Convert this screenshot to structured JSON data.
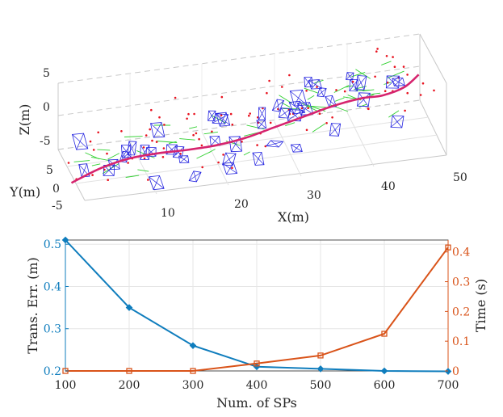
{
  "chart_data": [
    {
      "type": "3d-trajectory",
      "xlabel": "X(m)",
      "ylabel": "Y(m)",
      "zlabel": "Z(m)",
      "xlim": [
        0,
        50
      ],
      "ylim": [
        -5,
        5
      ],
      "zlim": [
        -5,
        5
      ],
      "x_ticks": [
        "10",
        "20",
        "30",
        "40",
        "50"
      ],
      "y_ticks": [
        "5",
        "0",
        "-5"
      ],
      "z_ticks": [
        "5",
        "0",
        "-5"
      ],
      "trajectory": {
        "color": "#d6246e",
        "points": [
          {
            "x": 0,
            "y": 0,
            "z": -6.2
          },
          {
            "x": 4,
            "y": 0,
            "z": -4.6
          },
          {
            "x": 8,
            "y": 0,
            "z": -3.7
          },
          {
            "x": 12,
            "y": 0,
            "z": -3.5
          },
          {
            "x": 16,
            "y": 0,
            "z": -3.6
          },
          {
            "x": 20,
            "y": 0,
            "z": -3.5
          },
          {
            "x": 24,
            "y": 0,
            "z": -3.0
          },
          {
            "x": 28,
            "y": 0,
            "z": -2.0
          },
          {
            "x": 32,
            "y": 0,
            "z": -1.0
          },
          {
            "x": 36,
            "y": 0,
            "z": 0.0
          },
          {
            "x": 40,
            "y": 0,
            "z": 0.6
          },
          {
            "x": 43,
            "y": 0,
            "z": 0.6
          },
          {
            "x": 46,
            "y": 0,
            "z": 1.4
          },
          {
            "x": 48,
            "y": 0,
            "z": 3.0
          }
        ]
      },
      "features": [
        "red map points",
        "green line features",
        "blue camera frustums"
      ]
    },
    {
      "type": "line",
      "categories": [
        100,
        200,
        300,
        400,
        500,
        600,
        700
      ],
      "xlabel": "Num. of SPs",
      "xlim": [
        100,
        700
      ],
      "x_ticks": [
        "100",
        "200",
        "300",
        "400",
        "500",
        "600",
        "700"
      ],
      "series": [
        {
          "name": "Trans. Err. (m)",
          "axis": "left",
          "marker": "diamond",
          "color": "#0f7dbd",
          "values": [
            0.51,
            0.35,
            0.26,
            0.21,
            0.205,
            0.2,
            0.199
          ]
        },
        {
          "name": "Time (s)",
          "axis": "right",
          "marker": "square",
          "color": "#d95319",
          "values": [
            0.0,
            0.0,
            0.0,
            0.025,
            0.052,
            0.125,
            0.415
          ]
        }
      ],
      "ylabel_left": "Trans. Err. (m)",
      "ylim_left": [
        0.2,
        0.51
      ],
      "yticks_left": [
        "0.2",
        "0.3",
        "0.4",
        "0.5"
      ],
      "ylabel_right": "Time (s)",
      "ylim_right": [
        0,
        0.44
      ],
      "yticks_right": [
        "0",
        "0.1",
        "0.2",
        "0.3",
        "0.4"
      ],
      "grid": true
    }
  ]
}
